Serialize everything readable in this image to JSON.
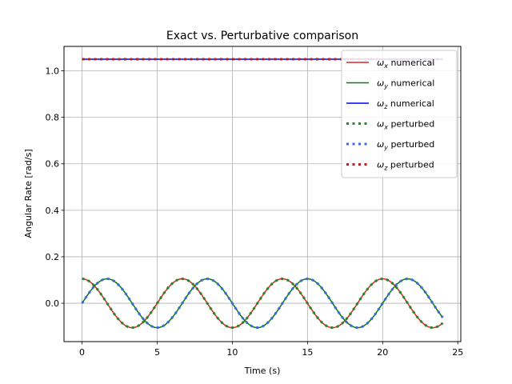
{
  "chart_data": {
    "type": "line",
    "title": "Exact vs. Perturbative comparison",
    "xlabel": "Time (s)",
    "ylabel": "Angular Rate [rad/s]",
    "xlim": [
      -1.2,
      25.2
    ],
    "ylim": [
      -0.165,
      1.105
    ],
    "xticks": [
      0,
      5,
      10,
      15,
      20,
      25
    ],
    "yticks": [
      0.0,
      0.2,
      0.4,
      0.6,
      0.8,
      1.0
    ],
    "xtick_labels": [
      "0",
      "5",
      "10",
      "15",
      "20",
      "25"
    ],
    "ytick_labels": [
      "0.0",
      "0.2",
      "0.4",
      "0.6",
      "0.8",
      "1.0"
    ],
    "grid": true,
    "legend_position": "top-right",
    "x_range": [
      0,
      24
    ],
    "model": {
      "amplitude": 0.105,
      "omega": 0.9425,
      "wz": 1.05
    },
    "series": [
      {
        "name": "ω_x numerical",
        "sym": "ω",
        "sub": "x",
        "suffix": " numerical",
        "color": "#d62728",
        "style": "solid",
        "kind": "cos"
      },
      {
        "name": "ω_y numerical",
        "sym": "ω",
        "sub": "y",
        "suffix": " numerical",
        "color": "#008000",
        "style": "solid",
        "kind": "sin"
      },
      {
        "name": "ω_z numerical",
        "sym": "ω",
        "sub": "z",
        "suffix": " numerical",
        "color": "#0000ff",
        "style": "solid",
        "kind": "const"
      },
      {
        "name": "ω_x perturbed",
        "sym": "ω",
        "sub": "x",
        "suffix": " perturbed",
        "color": "#228b22",
        "style": "dotted",
        "kind": "cos"
      },
      {
        "name": "ω_y perturbed",
        "sym": "ω",
        "sub": "y",
        "suffix": " perturbed",
        "color": "#4169e1",
        "style": "dotted",
        "kind": "sin"
      },
      {
        "name": "ω_z perturbed",
        "sym": "ω",
        "sub": "z",
        "suffix": " perturbed",
        "color": "#b22222",
        "style": "dotted",
        "kind": "const"
      }
    ]
  }
}
